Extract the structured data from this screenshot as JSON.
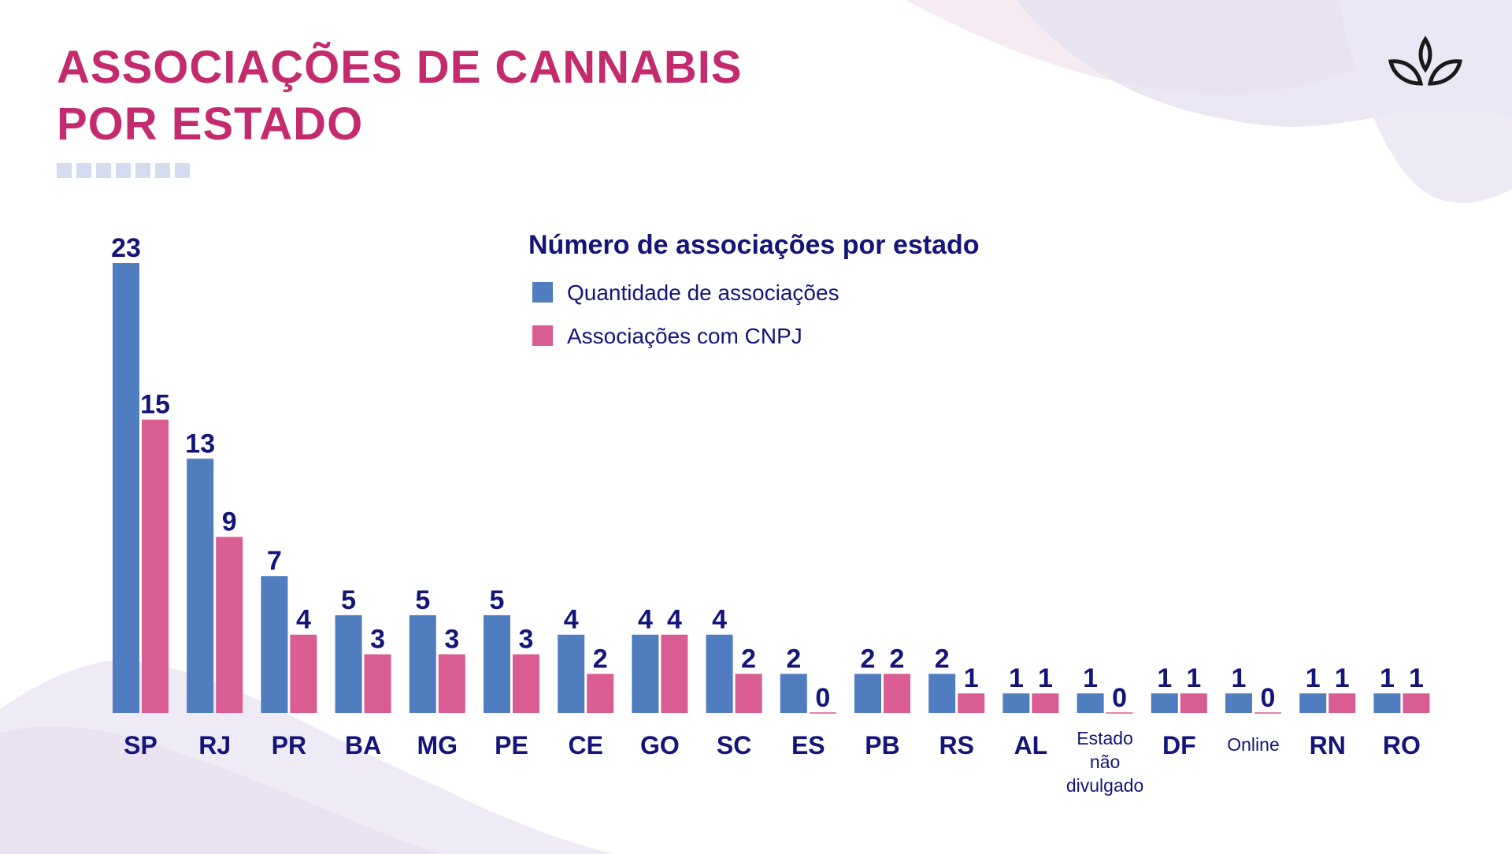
{
  "slide": {
    "title_line1": "ASSOCIAÇÕES DE CANNABIS",
    "title_line2": "POR ESTADO",
    "deco_squares": 7,
    "logo_icon": "sprout-icon",
    "colors": {
      "title": "#c42b6e",
      "text": "#14147a",
      "series1": "#4f7dbf",
      "series2": "#d95c92",
      "deco": "#d5dcef"
    }
  },
  "chart_data": {
    "type": "bar",
    "title": "Número de associações por estado",
    "legend_position": "top-center",
    "grid": false,
    "ylim": [
      0,
      25
    ],
    "categories": [
      "SP",
      "RJ",
      "PR",
      "BA",
      "MG",
      "PE",
      "CE",
      "GO",
      "SC",
      "ES",
      "PB",
      "RS",
      "AL",
      "Estado não divulgado",
      "DF",
      "Online",
      "RN",
      "RO"
    ],
    "series": [
      {
        "name": "Quantidade de associações",
        "color": "#4f7dbf",
        "values": [
          23,
          13,
          7,
          5,
          5,
          5,
          4,
          4,
          4,
          2,
          2,
          2,
          1,
          1,
          1,
          1,
          1,
          1
        ]
      },
      {
        "name": "Associações com CNPJ",
        "color": "#d95c92",
        "values": [
          15,
          9,
          4,
          3,
          3,
          3,
          2,
          4,
          2,
          0,
          2,
          1,
          1,
          0,
          1,
          0,
          1,
          1
        ]
      }
    ]
  }
}
